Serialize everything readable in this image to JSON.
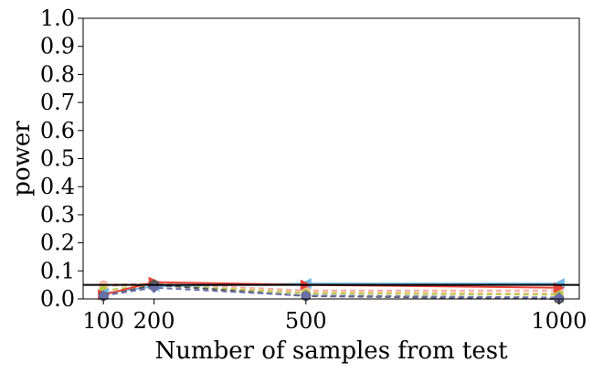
{
  "chart_data": {
    "type": "line",
    "xlabel": "Number of samples from test",
    "ylabel": "power",
    "x": [
      100,
      200,
      500,
      1000
    ],
    "xticks": [
      100,
      200,
      500,
      1000
    ],
    "xlim": [
      60,
      1040
    ],
    "ylim": [
      0,
      1
    ],
    "yticks": [
      0.0,
      0.1,
      0.2,
      0.3,
      0.4,
      0.5,
      0.6,
      0.7,
      0.8,
      0.9,
      1.0
    ],
    "ytick_labels": [
      "0.0",
      "0.1",
      "0.2",
      "0.3",
      "0.4",
      "0.5",
      "0.6",
      "0.7",
      "0.8",
      "0.9",
      "1.0"
    ],
    "reference_line": {
      "y": 0.05,
      "color": "#000000"
    },
    "grid": false,
    "series": [
      {
        "values": [
          0.05,
          0.055,
          0.03,
          0.03
        ],
        "color": "#f4a9a8",
        "dash": "6,4",
        "marker": "circle"
      },
      {
        "values": [
          0.045,
          0.05,
          0.025,
          0.02
        ],
        "color": "#f7c9a3",
        "dash": "6,4",
        "marker": "circle"
      },
      {
        "values": [
          0.03,
          0.05,
          0.02,
          0.015
        ],
        "color": "#b8c94a",
        "dash": "6,4",
        "marker": "circle"
      },
      {
        "values": [
          0.02,
          0.045,
          0.055,
          0.055
        ],
        "color": "#74b9e6",
        "dash": "",
        "marker": "triangle-left"
      },
      {
        "values": [
          0.015,
          0.06,
          0.05,
          0.04
        ],
        "color": "#e8443a",
        "dash": "",
        "marker": "triangle-right"
      },
      {
        "values": [
          0.01,
          0.05,
          0.01,
          0.0
        ],
        "color": "#555555",
        "dash": "6,4",
        "marker": "hexagon"
      },
      {
        "values": [
          0.012,
          0.04,
          0.012,
          0.005
        ],
        "color": "#6a6fa8",
        "dash": "6,4",
        "marker": "diamond"
      }
    ]
  }
}
